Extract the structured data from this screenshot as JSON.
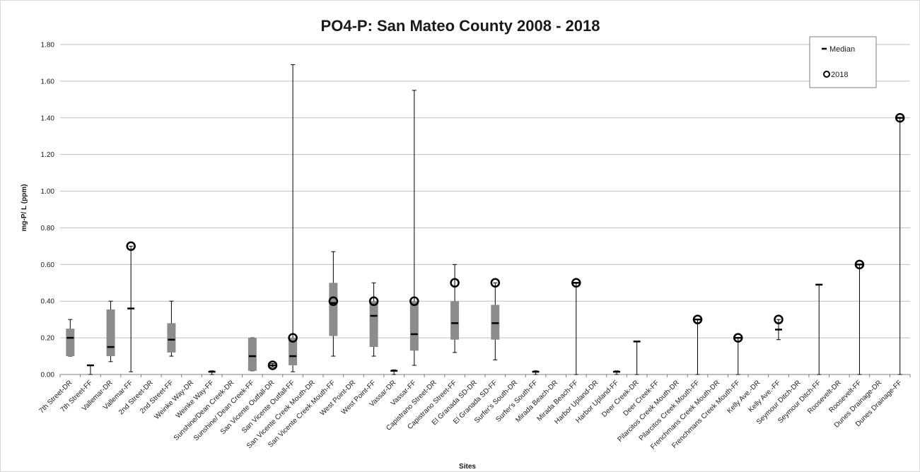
{
  "chart_data": {
    "type": "box",
    "title": "PO4-P:  San Mateo County  2008 - 2018",
    "xlabel": "Sites",
    "ylabel": "mg-P/ L (ppm)",
    "ylim": [
      0,
      1.8
    ],
    "y_ticks": [
      "0.00",
      "0.20",
      "0.40",
      "0.60",
      "0.80",
      "1.00",
      "1.20",
      "1.40",
      "1.60",
      "1.80"
    ],
    "grid": true,
    "legend_position": "top-right",
    "legend": [
      {
        "marker": "dash",
        "label": "Median"
      },
      {
        "marker": "circle",
        "label": "2018"
      }
    ],
    "colors": {
      "box": "#8c8c8c",
      "whisker": "#000000",
      "grid": "#bfbfbf"
    },
    "categories": [
      "7th Street-DR",
      "7th Street-FF",
      "Vallemar-DR",
      "Vallemar-FF",
      "2nd Street-DR",
      "2nd Street-FF",
      "Weinke Way-DR",
      "Weinke Way-FF",
      "Sunshine/Dean Creek-DR",
      "Sunshine/ Dean Creek-FF",
      "San Vicente Outfall-DR",
      "San Vicente Outfall-FF",
      "San Vicente Creek Mouth-DR",
      "San Vicente Creek Mouth-FF",
      "West Point-DR",
      "West Point-FF",
      "Vassar-DR",
      "Vassar-FF",
      "Capistrano Street-DR",
      "Capistrano Street-FF",
      "El Granada SD-DR",
      "El Granada SD-FF",
      "Surfer's South-DR",
      "Surfer's South-FF",
      "Mirada Beach-DR",
      "Mirada Beach-FF",
      "Harbor Upland-DR",
      "Harbor Upland-FF",
      "Deer Creek-DR",
      "Deer Creek-FF",
      "Pilarcitos Creek Mouth-DR",
      "Pilarcitos Creek Mouth-FF",
      "Frenchmans Creek Mouth-DR",
      "Frenchmans Creek Mouth-FF",
      "Kelly Ave.-DR",
      "Kelly Ave.-FF",
      "Seymour Ditch-DR",
      "Seymour Ditch-FF",
      "Roosevelt-DR",
      "Roosevelt-FF",
      "Dunes Drainage-DR",
      "Dunes Drainage-FF"
    ],
    "boxes": [
      {
        "i": 0,
        "min": 0.1,
        "q1": 0.1,
        "median": 0.2,
        "q3": 0.25,
        "max": 0.3
      },
      {
        "i": 1,
        "min": 0.0,
        "median": 0.05,
        "max": 0.05
      },
      {
        "i": 2,
        "min": 0.07,
        "q1": 0.1,
        "median": 0.15,
        "q3": 0.355,
        "max": 0.4
      },
      {
        "i": 3,
        "min": 0.015,
        "median": 0.36,
        "max": 0.7,
        "y2018": 0.7
      },
      {
        "i": 5,
        "min": 0.1,
        "q1": 0.12,
        "median": 0.19,
        "q3": 0.28,
        "max": 0.4
      },
      {
        "i": 7,
        "min": 0.0,
        "median": 0.015,
        "max": 0.02
      },
      {
        "i": 9,
        "min": 0.02,
        "q1": 0.02,
        "median": 0.1,
        "q3": 0.2,
        "max": 0.2
      },
      {
        "i": 10,
        "min": 0.04,
        "median": 0.05,
        "max": 0.06,
        "y2018": 0.05
      },
      {
        "i": 11,
        "min": 0.015,
        "q1": 0.05,
        "median": 0.1,
        "q3": 0.2,
        "max": 1.69,
        "y2018": 0.2
      },
      {
        "i": 13,
        "min": 0.1,
        "q1": 0.21,
        "median": 0.39,
        "q3": 0.5,
        "max": 0.67,
        "y2018": 0.4
      },
      {
        "i": 15,
        "min": 0.1,
        "q1": 0.15,
        "median": 0.32,
        "q3": 0.4,
        "max": 0.5,
        "y2018": 0.4
      },
      {
        "i": 16,
        "min": 0.0,
        "median": 0.02,
        "max": 0.025
      },
      {
        "i": 17,
        "min": 0.05,
        "q1": 0.13,
        "median": 0.22,
        "q3": 0.4,
        "max": 1.55,
        "y2018": 0.4
      },
      {
        "i": 19,
        "min": 0.12,
        "q1": 0.19,
        "median": 0.28,
        "q3": 0.4,
        "max": 0.6,
        "y2018": 0.5
      },
      {
        "i": 21,
        "min": 0.08,
        "q1": 0.19,
        "median": 0.28,
        "q3": 0.38,
        "max": 0.5,
        "y2018": 0.5
      },
      {
        "i": 23,
        "min": 0.0,
        "median": 0.015,
        "max": 0.02
      },
      {
        "i": 25,
        "min": 0.0,
        "median": 0.5,
        "max": 0.5,
        "y2018": 0.5
      },
      {
        "i": 27,
        "min": 0.0,
        "median": 0.015,
        "max": 0.02
      },
      {
        "i": 28,
        "min": 0.0,
        "median": 0.18,
        "max": 0.18
      },
      {
        "i": 31,
        "min": 0.0,
        "median": 0.3,
        "max": 0.3,
        "y2018": 0.3
      },
      {
        "i": 33,
        "min": 0.0,
        "median": 0.2,
        "max": 0.2,
        "y2018": 0.2
      },
      {
        "i": 35,
        "min": 0.19,
        "median": 0.245,
        "max": 0.3,
        "y2018": 0.3
      },
      {
        "i": 37,
        "min": 0.0,
        "median": 0.49,
        "max": 0.49
      },
      {
        "i": 39,
        "min": 0.0,
        "median": 0.6,
        "max": 0.6,
        "y2018": 0.6
      },
      {
        "i": 41,
        "min": 0.0,
        "median": 1.4,
        "max": 1.4,
        "y2018": 1.4
      }
    ]
  }
}
